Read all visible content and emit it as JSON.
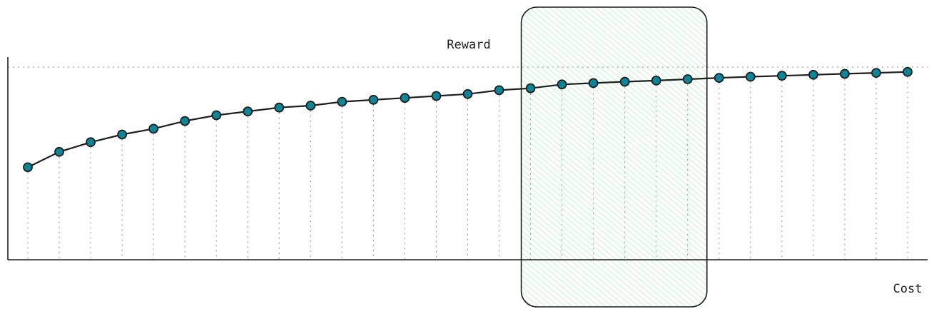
{
  "chart_data": {
    "type": "line",
    "xlabel": "Cost",
    "ylabel": "Reward",
    "x": [
      1,
      2,
      3,
      4,
      5,
      6,
      7,
      8,
      9,
      10,
      11,
      12,
      13,
      14,
      15,
      16,
      17,
      18,
      19,
      20,
      21,
      22,
      23,
      24,
      25,
      26,
      27,
      28,
      29
    ],
    "y": [
      0.48,
      0.56,
      0.61,
      0.65,
      0.68,
      0.72,
      0.75,
      0.77,
      0.79,
      0.8,
      0.82,
      0.83,
      0.84,
      0.85,
      0.86,
      0.88,
      0.89,
      0.91,
      0.917,
      0.924,
      0.93,
      0.937,
      0.944,
      0.95,
      0.955,
      0.96,
      0.965,
      0.97,
      0.975
    ],
    "max_reward_line": 1.0,
    "highlight_range": [
      17,
      22
    ],
    "grid": true,
    "colors": {
      "line": "#1e1e1e",
      "marker": "#0c8599",
      "highlight_fill": "#b2f2bb",
      "highlight_stroke": "#1e1e1e",
      "grid": "#868e96"
    }
  }
}
